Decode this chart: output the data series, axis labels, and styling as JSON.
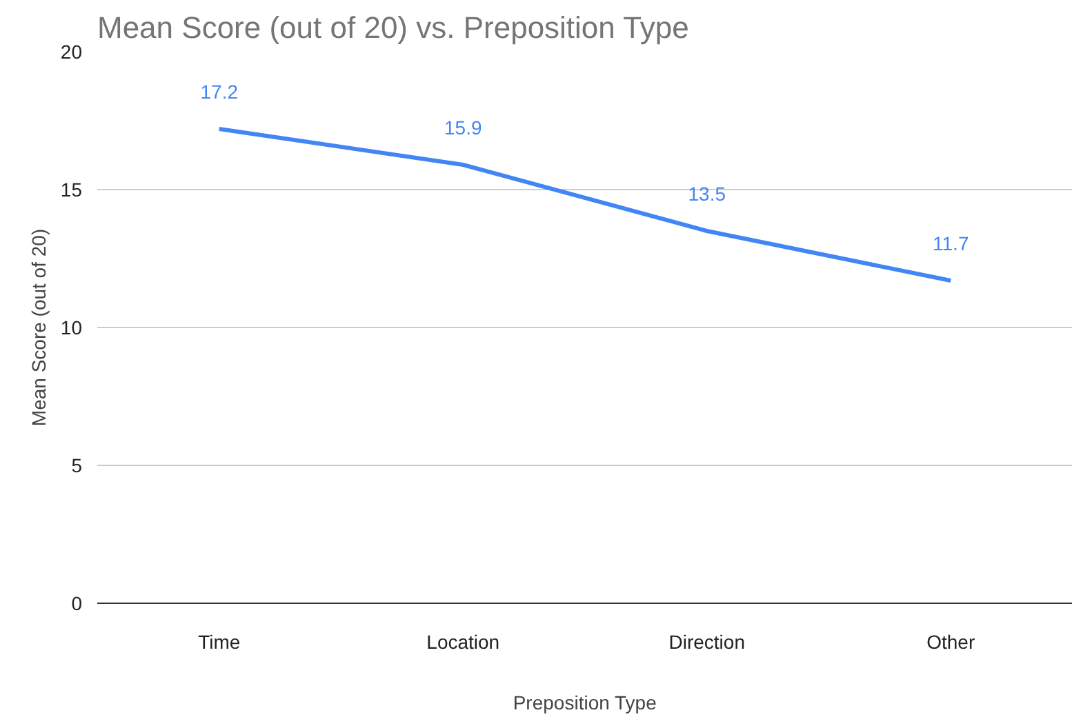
{
  "chart_data": {
    "type": "line",
    "title": "Mean Score (out of 20) vs. Preposition Type",
    "xlabel": "Preposition Type",
    "ylabel": "Mean Score (out of 20)",
    "categories": [
      "Time",
      "Location",
      "Direction",
      "Other"
    ],
    "series": [
      {
        "color": "#4285f4",
        "values": [
          17.2,
          15.9,
          13.5,
          11.7
        ]
      }
    ],
    "ylim": [
      0,
      20
    ],
    "yticks": [
      0,
      5,
      10,
      15,
      20
    ],
    "grid": "y",
    "data_labels": true,
    "marker": "none",
    "line_style": "solid"
  }
}
